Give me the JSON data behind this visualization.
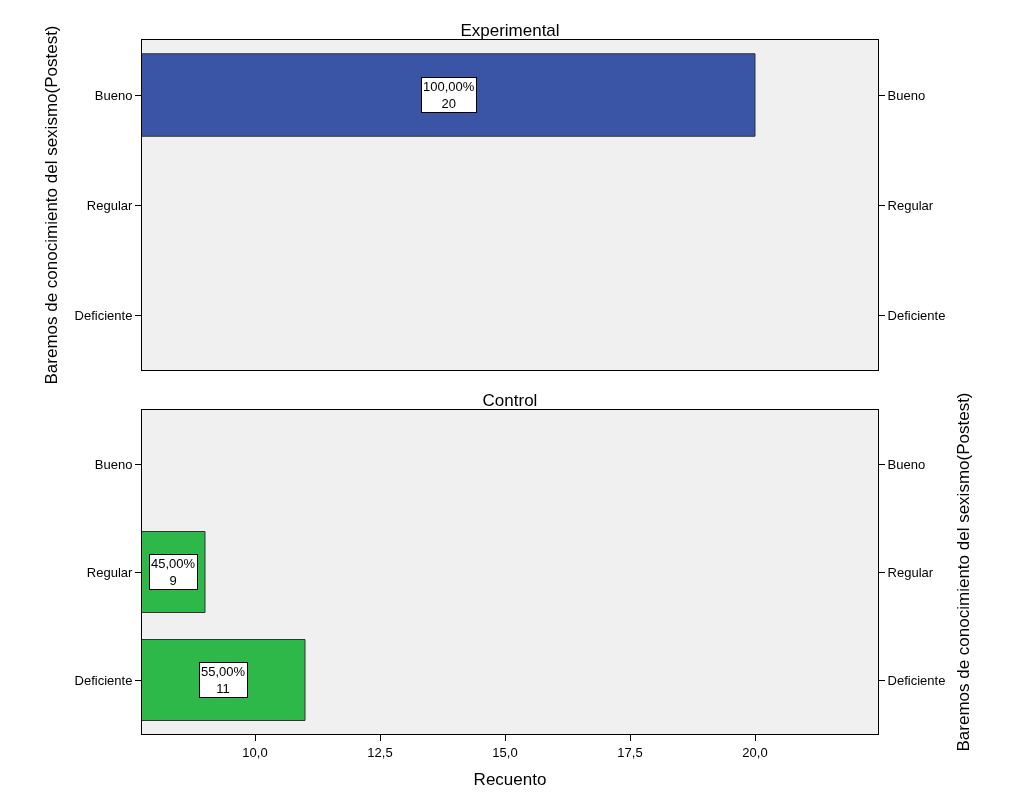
{
  "chart_data": [
    {
      "type": "bar",
      "orientation": "horizontal",
      "title": "Experimental",
      "ylabel": "Baremos de conocimiento del sexismo(Postest)",
      "categories": [
        "Bueno",
        "Regular",
        "Deficiente"
      ],
      "values": [
        20,
        null,
        null
      ],
      "color": "#3a55a6",
      "value_labels": [
        "100,00%\n20",
        null,
        null
      ],
      "xlim": [
        7.74,
        22.46
      ],
      "tick_labels": "y",
      "grid": false
    },
    {
      "type": "bar",
      "orientation": "horizontal",
      "title": "Control",
      "xlabel": "Recuento",
      "y2label": "Baremos de conocimiento del sexismo(Postest)",
      "categories": [
        "Bueno",
        "Regular",
        "Deficiente"
      ],
      "values": [
        null,
        9,
        11
      ],
      "color": "#2eb84a",
      "value_labels": [
        null,
        "45,00%\n9",
        "55,00%\n11"
      ],
      "xlim": [
        7.74,
        22.46
      ],
      "xticks": [
        {
          "value": 10,
          "label": "10,0"
        },
        {
          "value": 12.5,
          "label": "12,5"
        },
        {
          "value": 15,
          "label": "15,0"
        },
        {
          "value": 17.5,
          "label": "17,5"
        },
        {
          "value": 20,
          "label": "20,0"
        }
      ],
      "grid": false
    }
  ]
}
